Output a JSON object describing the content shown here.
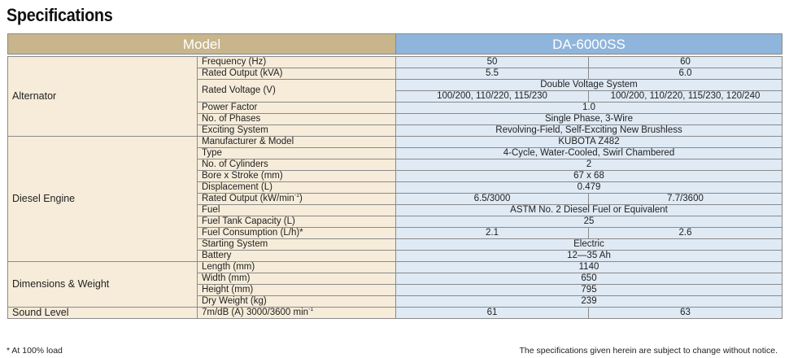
{
  "title": "Specifications",
  "header": {
    "model_label": "Model",
    "model_name": "DA-6000SS"
  },
  "alternator": {
    "group": "Alternator",
    "frequency": {
      "label": "Frequency (Hz)",
      "v1": "50",
      "v2": "60"
    },
    "rated_output": {
      "label": "Rated Output (kVA)",
      "v1": "5.5",
      "v2": "6.0"
    },
    "rated_voltage": {
      "label": "Rated Voltage (V)",
      "system": "Double Voltage System",
      "v1": "100/200, 110/220, 115/230",
      "v2": "100/200, 110/220, 115/230, 120/240"
    },
    "power_factor": {
      "label": "Power Factor",
      "value": "1.0"
    },
    "phases": {
      "label": "No. of Phases",
      "value": "Single Phase, 3-Wire"
    },
    "exciting": {
      "label": "Exciting System",
      "value": "Revolving-Field, Self-Exciting New Brushless"
    }
  },
  "engine": {
    "group": "Diesel Engine",
    "manufacturer": {
      "label": "Manufacturer & Model",
      "value": "KUBOTA Z482"
    },
    "type": {
      "label": "Type",
      "value": "4-Cycle, Water-Cooled, Swirl Chambered"
    },
    "cylinders": {
      "label": "No. of Cylinders",
      "value": "2"
    },
    "bore_stroke": {
      "label": "Bore x Stroke (mm)",
      "value": "67 x 68"
    },
    "displacement": {
      "label": "Displacement (L)",
      "value": "0.479"
    },
    "rated_output": {
      "label_main": "Rated Output (kW/min",
      "label_sup": "-1",
      "label_end": ")",
      "v1": "6.5/3000",
      "v2": "7.7/3600"
    },
    "fuel": {
      "label": "Fuel",
      "value": "ASTM No. 2 Diesel  Fuel or Equivalent"
    },
    "tank": {
      "label": "Fuel Tank Capacity (L)",
      "value": "25"
    },
    "consumption": {
      "label": "Fuel Consumption (L/h)*",
      "v1": "2.1",
      "v2": "2.6"
    },
    "starting": {
      "label": "Starting System",
      "value": "Electric"
    },
    "battery": {
      "label": "Battery",
      "value": "12—35 Ah"
    }
  },
  "dimensions": {
    "group": "Dimensions & Weight",
    "length": {
      "label": "Length (mm)",
      "value": "1140"
    },
    "width": {
      "label": "Width (mm)",
      "value": "650"
    },
    "height": {
      "label": "Height (mm)",
      "value": "795"
    },
    "weight": {
      "label": "Dry Weight (kg)",
      "value": "239"
    }
  },
  "sound": {
    "group": "Sound Level",
    "label_main": "7m/dB (A) 3000/3600 min",
    "label_sup": "-1",
    "v1": "61",
    "v2": "63"
  },
  "footer": {
    "note": "* At 100% load",
    "disclaimer": "The specifications given herein are subject to change without notice."
  }
}
